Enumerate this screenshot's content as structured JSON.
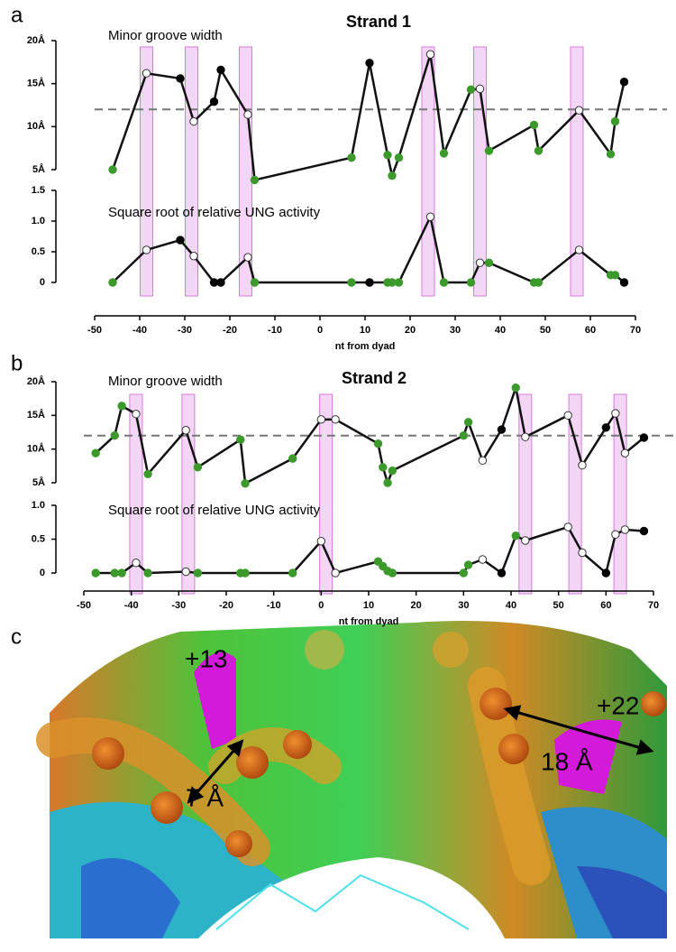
{
  "panel_labels": [
    "a",
    "b",
    "c"
  ],
  "chart_data": [
    {
      "type": "line",
      "title": "Strand 1",
      "xlabel": "nt from dyad",
      "xlim": [
        -50,
        70
      ],
      "xticks": [
        -50,
        -40,
        -30,
        -20,
        -10,
        0,
        10,
        20,
        30,
        40,
        50,
        60,
        70
      ],
      "x": [
        -46,
        -38.5,
        -31,
        -28,
        -23.5,
        -22,
        -16,
        -14.5,
        7,
        11,
        15,
        16,
        17.5,
        24.5,
        27.5,
        33.5,
        35.5,
        37.5,
        47.5,
        48.5,
        57.5,
        64.5,
        65.5,
        67.5
      ],
      "marker_colors": [
        "#3c9a2c",
        "#ffffff",
        "#000000",
        "#ffffff",
        "#000000",
        "#000000",
        "#ffffff",
        "#3c9a2c",
        "#3c9a2c",
        "#000000",
        "#3c9a2c",
        "#3c9a2c",
        "#3c9a2c",
        "#ffffff",
        "#3c9a2c",
        "#3c9a2c",
        "#ffffff",
        "#3c9a2c",
        "#3c9a2c",
        "#3c9a2c",
        "#ffffff",
        "#3c9a2c",
        "#3c9a2c",
        "#000000"
      ],
      "line_color": "#111111",
      "highlight_color": "#e9b3ec",
      "highlight_x": [
        -38.5,
        -28.5,
        -16.5,
        24,
        35.5,
        57
      ],
      "panels": [
        {
          "label": "Minor groove width",
          "ylim": [
            5,
            20
          ],
          "yticks": [
            {
              "value": 5,
              "label": "5Å"
            },
            {
              "value": 10,
              "label": "10Å"
            },
            {
              "value": 15,
              "label": "15Å"
            },
            {
              "value": 20,
              "label": "20Å"
            }
          ],
          "reference_y": 12,
          "values": [
            5,
            16.2,
            15.6,
            10.6,
            12.9,
            16.6,
            11.4,
            3.8,
            6.4,
            17.4,
            6.7,
            4.3,
            6.4,
            18.4,
            6.9,
            14.3,
            14.4,
            7.2,
            10.2,
            7.2,
            11.9,
            6.8,
            10.6,
            15.2
          ]
        },
        {
          "label": "Square root of relative UNG activity",
          "ylim": [
            0,
            1.5
          ],
          "yticks": [
            0,
            0.5,
            {
              "value": 1,
              "label": "1.0"
            },
            1.5
          ],
          "values": [
            0,
            0.53,
            0.69,
            0.43,
            0,
            0,
            0.41,
            0,
            0,
            0,
            0,
            0,
            0,
            1.07,
            0,
            0,
            0.32,
            0.32,
            0,
            0,
            0.53,
            0.12,
            0.12,
            0
          ]
        }
      ]
    },
    {
      "type": "line",
      "title": "Strand 2",
      "xlabel": "nt from dyad",
      "xlim": [
        -50,
        70
      ],
      "xticks": [
        -50,
        -40,
        -30,
        -20,
        -10,
        0,
        10,
        20,
        30,
        40,
        50,
        60,
        70
      ],
      "x": [
        -47.5,
        -43.5,
        -42,
        -39,
        -36.5,
        -28.5,
        -26,
        -17,
        -16,
        -6,
        0,
        3,
        12,
        13,
        14,
        15,
        30,
        31,
        34,
        38,
        41,
        43,
        52,
        55,
        60,
        62,
        64,
        68
      ],
      "marker_colors": [
        "#3c9a2c",
        "#3c9a2c",
        "#3c9a2c",
        "#ffffff",
        "#3c9a2c",
        "#ffffff",
        "#3c9a2c",
        "#3c9a2c",
        "#3c9a2c",
        "#3c9a2c",
        "#ffffff",
        "#ffffff",
        "#3c9a2c",
        "#3c9a2c",
        "#3c9a2c",
        "#3c9a2c",
        "#3c9a2c",
        "#3c9a2c",
        "#ffffff",
        "#000000",
        "#3c9a2c",
        "#ffffff",
        "#ffffff",
        "#ffffff",
        "#000000",
        "#ffffff",
        "#ffffff",
        "#000000"
      ],
      "line_color": "#111111",
      "highlight_color": "#e9b3ec",
      "highlight_x": [
        -39,
        -28,
        1,
        43,
        53.5,
        63
      ],
      "panels": [
        {
          "label": "Minor groove width",
          "ylim": [
            5,
            20
          ],
          "yticks": [
            {
              "value": 5,
              "label": "5Å"
            },
            {
              "value": 10,
              "label": "10Å"
            },
            {
              "value": 15,
              "label": "15Å"
            },
            {
              "value": 20,
              "label": "20Å"
            }
          ],
          "reference_y": 12,
          "values": [
            9.4,
            12,
            16.4,
            15.2,
            6.3,
            12.8,
            7.3,
            11.4,
            4.9,
            8.6,
            14.4,
            14.4,
            10.8,
            7.3,
            5,
            6.8,
            12,
            14,
            8.3,
            12.9,
            19.1,
            11.8,
            15,
            7.6,
            13.2,
            15.3,
            9.4,
            11.7
          ]
        },
        {
          "label": "Square root of relative UNG activity",
          "ylim": [
            0,
            1
          ],
          "yticks": [
            0,
            0.5,
            {
              "value": 1,
              "label": "1.0"
            }
          ],
          "values": [
            0,
            0,
            0,
            0.15,
            0,
            0.02,
            0,
            0,
            0,
            0,
            0.47,
            0,
            0.17,
            0.1,
            0.03,
            0,
            0,
            0.12,
            0.2,
            0,
            0.55,
            0.48,
            0.68,
            0.3,
            0,
            0.57,
            0.64,
            0.62
          ]
        }
      ]
    }
  ],
  "panel_c": {
    "labels": [
      "+13",
      "+22",
      "7 Å",
      "18 Å"
    ]
  }
}
